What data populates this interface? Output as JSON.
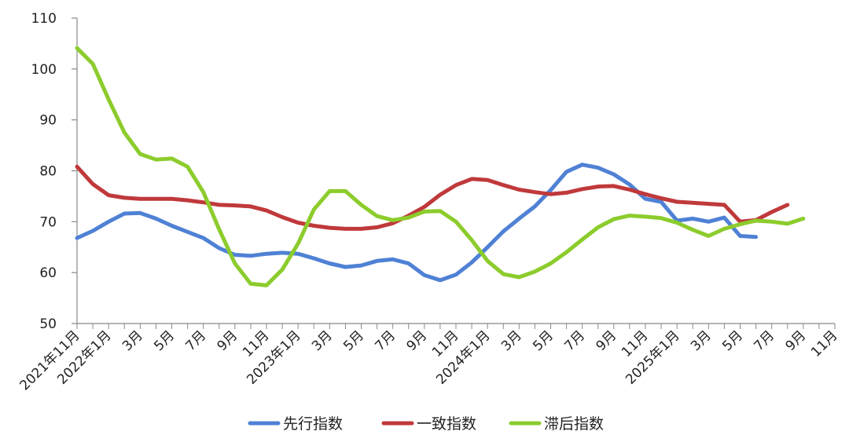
{
  "chart_data": {
    "type": "line",
    "title": "",
    "xlabel": "",
    "ylabel": "",
    "ylim": [
      50,
      110
    ],
    "yticks": [
      50,
      60,
      70,
      80,
      90,
      100,
      110
    ],
    "grid": false,
    "legend_position": "bottom",
    "x_tick_labels": [
      "2021年11月",
      "2022年1月",
      "3月",
      "5月",
      "7月",
      "9月",
      "11月",
      "2023年1月",
      "3月",
      "5月",
      "7月",
      "9月",
      "11月",
      "2024年1月",
      "3月",
      "5月",
      "7月",
      "9月",
      "11月",
      "2025年1月",
      "3月",
      "5月",
      "7月",
      "9月",
      "11月"
    ],
    "series": [
      {
        "name": "先行指数",
        "color": "#4f81d5",
        "values": [
          66.8,
          68.2,
          70.0,
          71.6,
          71.7,
          70.6,
          69.2,
          68.0,
          66.8,
          64.8,
          63.5,
          63.3,
          63.7,
          63.9,
          63.7,
          62.8,
          61.8,
          61.1,
          61.4,
          62.3,
          62.6,
          61.8,
          59.5,
          58.5,
          59.6,
          62.0,
          65.0,
          68.1,
          70.6,
          73.0,
          76.2,
          79.8,
          81.2,
          80.6,
          79.3,
          77.3,
          74.5,
          73.9,
          70.2,
          70.6,
          70.0,
          70.8,
          67.2,
          67.0
        ]
      },
      {
        "name": "一致指数",
        "color": "#c0393b",
        "values": [
          80.8,
          77.4,
          75.2,
          74.7,
          74.5,
          74.5,
          74.5,
          74.2,
          73.8,
          73.3,
          73.2,
          73.0,
          72.2,
          70.9,
          69.8,
          69.2,
          68.8,
          68.6,
          68.6,
          68.9,
          69.7,
          71.2,
          72.9,
          75.3,
          77.2,
          78.4,
          78.2,
          77.2,
          76.3,
          75.8,
          75.4,
          75.7,
          76.4,
          76.9,
          77.0,
          76.3,
          75.4,
          74.6,
          73.9,
          73.7,
          73.5,
          73.3,
          70.0,
          70.3,
          71.9,
          73.3
        ]
      },
      {
        "name": "滞后指数",
        "color": "#8ccc2c",
        "values": [
          104.1,
          101.0,
          94.0,
          87.5,
          83.3,
          82.2,
          82.4,
          80.8,
          75.8,
          68.5,
          61.8,
          57.8,
          57.5,
          60.6,
          65.7,
          72.4,
          76.0,
          76.0,
          73.3,
          71.1,
          70.3,
          70.8,
          72.0,
          72.1,
          70.0,
          66.4,
          62.3,
          59.7,
          59.1,
          60.2,
          61.8,
          64.0,
          66.5,
          68.9,
          70.5,
          71.2,
          71.0,
          70.7,
          69.8,
          68.4,
          67.2,
          68.6,
          69.5,
          70.2,
          70.0,
          69.6,
          70.6
        ]
      }
    ]
  }
}
